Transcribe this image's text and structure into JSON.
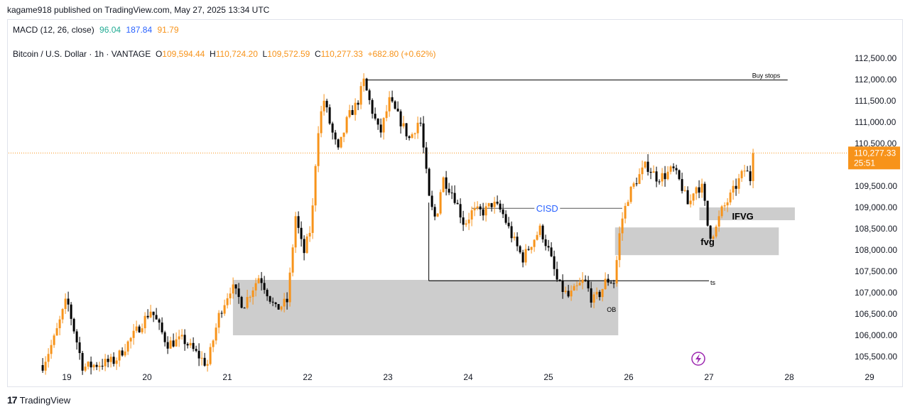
{
  "header": {
    "published": "kagame918 published on TradingView.com, May 27, 2025 13:34 UTC"
  },
  "macd": {
    "label": "MACD (12, 26, close)",
    "v1": "96.04",
    "v2": "187.84",
    "v3": "91.79",
    "c1": "#22ab94",
    "c2": "#2962ff",
    "c3": "#f7931a"
  },
  "legend": {
    "symbol": "Bitcoin / U.S. Dollar · 1h · VANTAGE",
    "o_label": "O",
    "o": "109,594.44",
    "h_label": "H",
    "h": "110,724.20",
    "l_label": "L",
    "l": "109,572.59",
    "c_label": "C",
    "c": "110,277.33",
    "change": "+682.80 (+0.62%)"
  },
  "price_badge": {
    "price": "110,277.33",
    "countdown": "25:51",
    "color": "#f7931a"
  },
  "footer": {
    "brand": "TradingView"
  },
  "chart_data": {
    "type": "candlestick",
    "title": "Bitcoin / U.S. Dollar · 1h · VANTAGE",
    "ylim": [
      105150,
      112950
    ],
    "yticks": [
      105500,
      106000,
      106500,
      107000,
      107500,
      108000,
      108500,
      109000,
      109500,
      110000,
      110500,
      111000,
      111500,
      112000,
      112500
    ],
    "ytick_labels": [
      "105,500.00",
      "106,000.00",
      "106,500.00",
      "107,000.00",
      "107,500.00",
      "108,000.00",
      "108,500.00",
      "109,000.00",
      "109,500.00",
      "110,000.00",
      "110,500.00",
      "111,000.00",
      "111,500.00",
      "112,000.00",
      "112,500.00"
    ],
    "xlim": [
      18.55,
      29.3
    ],
    "xticks": [
      19,
      20,
      21,
      22,
      23,
      24,
      25,
      26,
      27,
      28,
      29
    ],
    "xtick_labels": [
      "19",
      "20",
      "21",
      "22",
      "23",
      "24",
      "25",
      "26",
      "27",
      "28",
      "29"
    ],
    "current_price": 110277.33,
    "colors": {
      "up": "#f7931a",
      "down": "#000000",
      "zone": "#c8c8c8",
      "label_blue": "#2962ff"
    },
    "annotations": {
      "buy_stops": {
        "label": "Buy stops",
        "price": 111990,
        "x_start": 22.72,
        "x_end": 27.98
      },
      "ts": {
        "label": "ts",
        "price": 107280,
        "x_start": 23.51,
        "x_end": 27.0
      },
      "cisd": {
        "label": "CISD",
        "price": 108980,
        "x_start": 24.05,
        "x_end": 25.92
      },
      "ob": {
        "label": "OB",
        "x1": 21.07,
        "x2": 25.87,
        "y_low": 106000,
        "y_high": 107300
      },
      "fvg": {
        "label": "fvg",
        "x1": 25.83,
        "x2": 27.87,
        "y_low": 107880,
        "y_high": 108530
      },
      "ifvg": {
        "label": "IFVG",
        "x1": 26.88,
        "x2": 28.07,
        "y_low": 108700,
        "y_high": 109000
      }
    },
    "anchors": [
      [
        18.7,
        105300
      ],
      [
        18.85,
        105950
      ],
      [
        19.0,
        106850
      ],
      [
        19.2,
        105250
      ],
      [
        19.6,
        105400
      ],
      [
        19.85,
        106050
      ],
      [
        20.05,
        106600
      ],
      [
        20.25,
        105800
      ],
      [
        20.45,
        105900
      ],
      [
        20.75,
        105300
      ],
      [
        20.9,
        106500
      ],
      [
        21.05,
        107150
      ],
      [
        21.2,
        106700
      ],
      [
        21.4,
        107400
      ],
      [
        21.5,
        107000
      ],
      [
        21.6,
        106600
      ],
      [
        21.75,
        106800
      ],
      [
        21.85,
        108800
      ],
      [
        21.95,
        107900
      ],
      [
        22.05,
        108600
      ],
      [
        22.12,
        110700
      ],
      [
        22.2,
        111550
      ],
      [
        22.3,
        110800
      ],
      [
        22.38,
        110300
      ],
      [
        22.5,
        111100
      ],
      [
        22.62,
        111450
      ],
      [
        22.7,
        111950
      ],
      [
        22.8,
        111300
      ],
      [
        22.9,
        110700
      ],
      [
        23.02,
        111500
      ],
      [
        23.15,
        111050
      ],
      [
        23.27,
        110600
      ],
      [
        23.4,
        111100
      ],
      [
        23.52,
        109100
      ],
      [
        23.6,
        108700
      ],
      [
        23.68,
        109700
      ],
      [
        23.82,
        109300
      ],
      [
        23.95,
        108600
      ],
      [
        24.05,
        108900
      ],
      [
        24.2,
        108900
      ],
      [
        24.3,
        109100
      ],
      [
        24.42,
        108900
      ],
      [
        24.55,
        108300
      ],
      [
        24.68,
        107800
      ],
      [
        24.8,
        108200
      ],
      [
        24.9,
        108500
      ],
      [
        25.0,
        108000
      ],
      [
        25.12,
        107200
      ],
      [
        25.25,
        106900
      ],
      [
        25.35,
        107100
      ],
      [
        25.45,
        107300
      ],
      [
        25.55,
        106800
      ],
      [
        25.65,
        107000
      ],
      [
        25.72,
        107300
      ],
      [
        25.82,
        107250
      ],
      [
        25.9,
        108600
      ],
      [
        26.0,
        109300
      ],
      [
        26.1,
        109650
      ],
      [
        26.22,
        110000
      ],
      [
        26.35,
        109700
      ],
      [
        26.45,
        109750
      ],
      [
        26.55,
        109900
      ],
      [
        26.65,
        109550
      ],
      [
        26.75,
        109000
      ],
      [
        26.82,
        109500
      ],
      [
        26.92,
        109450
      ],
      [
        27.0,
        108350
      ],
      [
        27.08,
        108450
      ],
      [
        27.15,
        108900
      ],
      [
        27.25,
        109200
      ],
      [
        27.35,
        109550
      ],
      [
        27.45,
        109900
      ],
      [
        27.52,
        109650
      ],
      [
        27.56,
        110277
      ]
    ]
  }
}
